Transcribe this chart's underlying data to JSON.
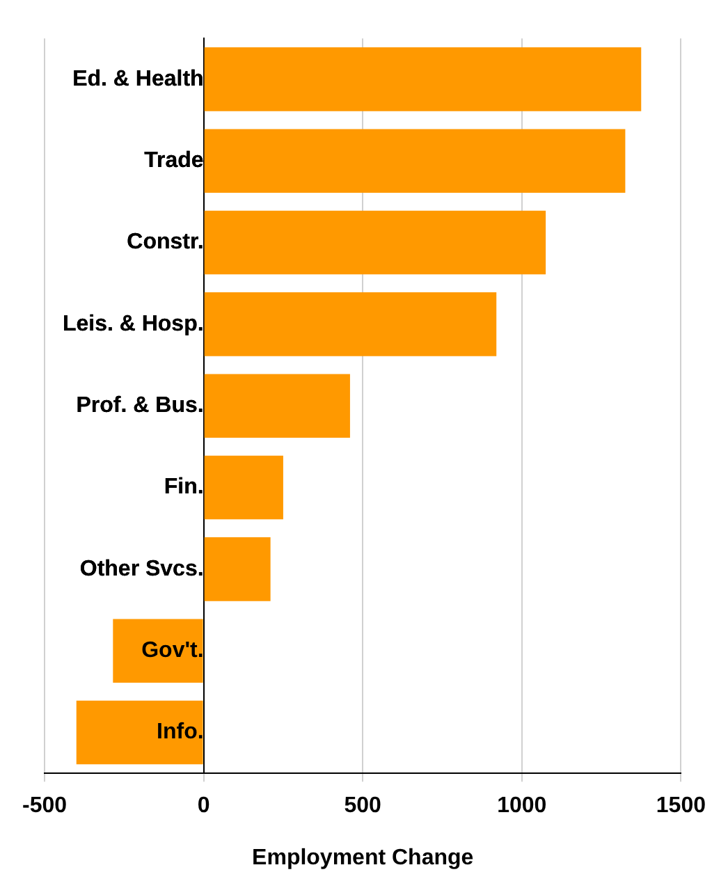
{
  "chart_data": {
    "type": "bar",
    "orientation": "horizontal",
    "xlabel": "Employment Change",
    "categories": [
      "Ed. & Health",
      "Trade",
      "Constr.",
      "Leis. & Hosp.",
      "Prof. & Bus.",
      "Fin.",
      "Other Svcs.",
      "Gov't.",
      "Info."
    ],
    "values": [
      1375,
      1325,
      1075,
      920,
      460,
      250,
      210,
      -285,
      -400
    ],
    "color": "#ff9900",
    "xlim": [
      -500,
      1500
    ],
    "xticks": [
      -500,
      0,
      500,
      1000,
      1500
    ],
    "grid": "x",
    "legend": false
  }
}
